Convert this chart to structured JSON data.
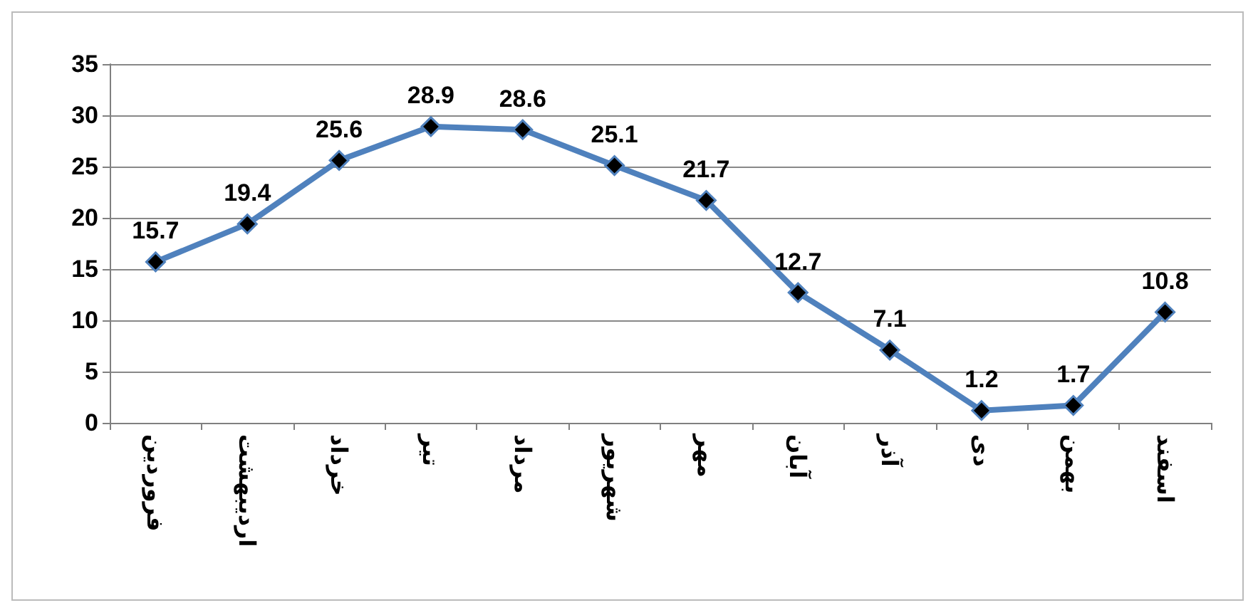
{
  "chart_data": {
    "type": "line",
    "categories": [
      "فروردین",
      "اردیبهشت",
      "خرداد",
      "تیر",
      "مرداد",
      "شهریور",
      "مهر",
      "آبان",
      "آذر",
      "دی",
      "بهمن",
      "اسفند"
    ],
    "series": [
      {
        "color": "#4f81bd",
        "values": [
          15.7,
          19.4,
          25.6,
          28.9,
          28.6,
          25.1,
          21.7,
          12.7,
          7.1,
          1.2,
          1.7,
          10.8
        ]
      }
    ],
    "ylim": [
      0,
      35
    ],
    "yticks": [
      0,
      5,
      10,
      15,
      20,
      25,
      30,
      35
    ],
    "grid": "y",
    "marker": "diamond",
    "line_style": "solid",
    "data_labels": true
  }
}
